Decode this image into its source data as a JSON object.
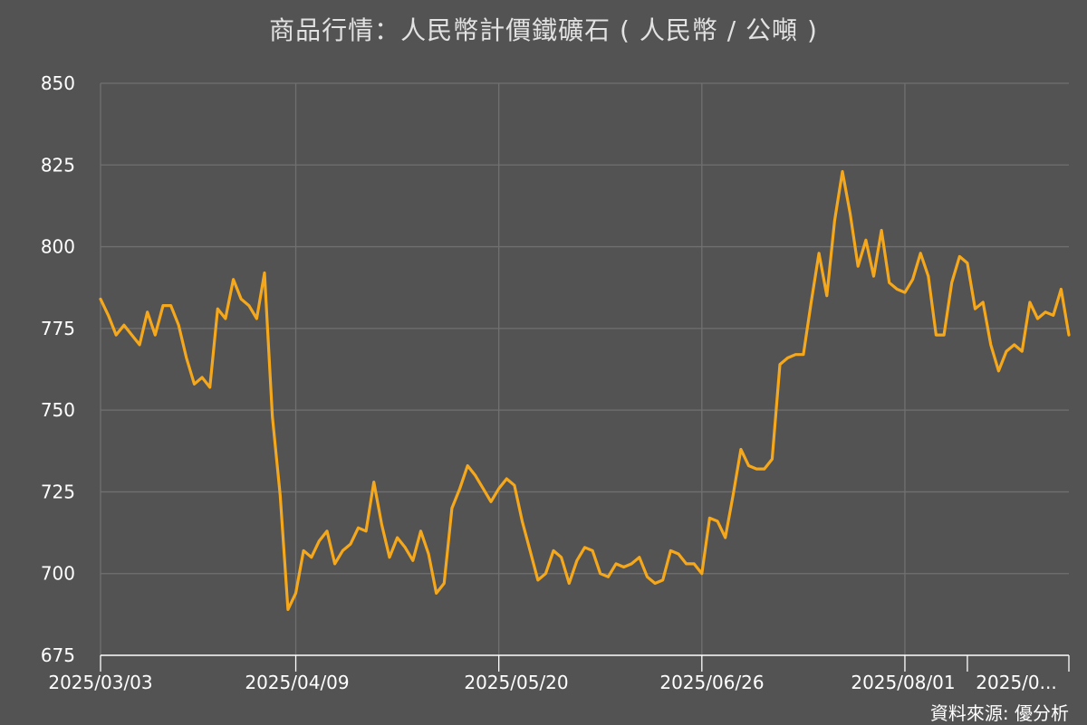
{
  "chart_data": {
    "type": "line",
    "title": "商品行情：人民幣計價鐵礦石 ( 人民幣 / 公噸 )",
    "source": "資料來源: 優分析",
    "xlabel": "",
    "ylabel": "",
    "ylim": [
      675,
      850
    ],
    "yticks": [
      675,
      700,
      725,
      750,
      775,
      800,
      825,
      850
    ],
    "xlim": [
      "2025-03-03",
      "2025-08-25"
    ],
    "xticks": [
      {
        "date": "2025-03-03",
        "label": "2025/03/03"
      },
      {
        "date": "2025-04-09",
        "label": "2025/04/09"
      },
      {
        "date": "2025-05-20",
        "label": "2025/05/20"
      },
      {
        "date": "2025-06-26",
        "label": "2025/06/26"
      },
      {
        "date": "2025-08-01",
        "label": "2025/08/01"
      },
      {
        "date": "2025-08-13",
        "label": "2025/0..."
      }
    ],
    "grid": true,
    "line_color": "#f5a81c",
    "series": [
      {
        "points": [
          [
            "2025-03-03",
            784
          ],
          [
            "2025-03-04",
            779
          ],
          [
            "2025-03-05",
            773
          ],
          [
            "2025-03-06",
            776
          ],
          [
            "2025-03-07",
            773
          ],
          [
            "2025-03-10",
            770
          ],
          [
            "2025-03-11",
            780
          ],
          [
            "2025-03-12",
            773
          ],
          [
            "2025-03-13",
            782
          ],
          [
            "2025-03-14",
            782
          ],
          [
            "2025-03-17",
            776
          ],
          [
            "2025-03-18",
            766
          ],
          [
            "2025-03-19",
            758
          ],
          [
            "2025-03-20",
            760
          ],
          [
            "2025-03-21",
            757
          ],
          [
            "2025-03-24",
            781
          ],
          [
            "2025-03-25",
            778
          ],
          [
            "2025-03-26",
            790
          ],
          [
            "2025-03-27",
            784
          ],
          [
            "2025-03-28",
            782
          ],
          [
            "2025-03-31",
            778
          ],
          [
            "2025-04-01",
            792
          ],
          [
            "2025-04-02",
            748
          ],
          [
            "2025-04-07",
            724
          ],
          [
            "2025-04-08",
            689
          ],
          [
            "2025-04-09",
            694
          ],
          [
            "2025-04-10",
            707
          ],
          [
            "2025-04-11",
            705
          ],
          [
            "2025-04-14",
            710
          ],
          [
            "2025-04-15",
            713
          ],
          [
            "2025-04-16",
            703
          ],
          [
            "2025-04-17",
            707
          ],
          [
            "2025-04-18",
            709
          ],
          [
            "2025-04-21",
            714
          ],
          [
            "2025-04-22",
            713
          ],
          [
            "2025-04-23",
            728
          ],
          [
            "2025-04-24",
            715
          ],
          [
            "2025-04-25",
            705
          ],
          [
            "2025-04-28",
            711
          ],
          [
            "2025-04-29",
            708
          ],
          [
            "2025-04-30",
            704
          ],
          [
            "2025-05-06",
            713
          ],
          [
            "2025-05-07",
            706
          ],
          [
            "2025-05-08",
            694
          ],
          [
            "2025-05-09",
            697
          ],
          [
            "2025-05-12",
            720
          ],
          [
            "2025-05-13",
            726
          ],
          [
            "2025-05-14",
            733
          ],
          [
            "2025-05-15",
            730
          ],
          [
            "2025-05-16",
            726
          ],
          [
            "2025-05-19",
            722
          ],
          [
            "2025-05-20",
            726
          ],
          [
            "2025-05-21",
            729
          ],
          [
            "2025-05-22",
            727
          ],
          [
            "2025-05-23",
            716
          ],
          [
            "2025-05-26",
            707
          ],
          [
            "2025-05-27",
            698
          ],
          [
            "2025-05-28",
            700
          ],
          [
            "2025-05-29",
            707
          ],
          [
            "2025-05-30",
            705
          ],
          [
            "2025-06-03",
            697
          ],
          [
            "2025-06-04",
            704
          ],
          [
            "2025-06-05",
            708
          ],
          [
            "2025-06-06",
            707
          ],
          [
            "2025-06-09",
            700
          ],
          [
            "2025-06-10",
            699
          ],
          [
            "2025-06-11",
            703
          ],
          [
            "2025-06-12",
            702
          ],
          [
            "2025-06-13",
            703
          ],
          [
            "2025-06-16",
            705
          ],
          [
            "2025-06-17",
            699
          ],
          [
            "2025-06-18",
            697
          ],
          [
            "2025-06-19",
            698
          ],
          [
            "2025-06-20",
            707
          ],
          [
            "2025-06-23",
            706
          ],
          [
            "2025-06-24",
            703
          ],
          [
            "2025-06-25",
            703
          ],
          [
            "2025-06-26",
            700
          ],
          [
            "2025-06-27",
            717
          ],
          [
            "2025-06-30",
            716
          ],
          [
            "2025-07-01",
            711
          ],
          [
            "2025-07-02",
            724
          ],
          [
            "2025-07-03",
            738
          ],
          [
            "2025-07-04",
            733
          ],
          [
            "2025-07-07",
            732
          ],
          [
            "2025-07-08",
            732
          ],
          [
            "2025-07-09",
            735
          ],
          [
            "2025-07-10",
            764
          ],
          [
            "2025-07-11",
            766
          ],
          [
            "2025-07-14",
            767
          ],
          [
            "2025-07-15",
            767
          ],
          [
            "2025-07-16",
            783
          ],
          [
            "2025-07-17",
            798
          ],
          [
            "2025-07-18",
            785
          ],
          [
            "2025-07-21",
            808
          ],
          [
            "2025-07-22",
            823
          ],
          [
            "2025-07-23",
            810
          ],
          [
            "2025-07-24",
            794
          ],
          [
            "2025-07-25",
            802
          ],
          [
            "2025-07-28",
            791
          ],
          [
            "2025-07-29",
            805
          ],
          [
            "2025-07-30",
            789
          ],
          [
            "2025-07-31",
            787
          ],
          [
            "2025-08-01",
            786
          ],
          [
            "2025-08-04",
            790
          ],
          [
            "2025-08-05",
            798
          ],
          [
            "2025-08-06",
            791
          ],
          [
            "2025-08-07",
            773
          ],
          [
            "2025-08-08",
            773
          ],
          [
            "2025-08-11",
            789
          ],
          [
            "2025-08-12",
            797
          ],
          [
            "2025-08-13",
            795
          ],
          [
            "2025-08-14",
            781
          ],
          [
            "2025-08-15",
            783
          ],
          [
            "2025-08-18",
            770
          ],
          [
            "2025-08-19",
            762
          ],
          [
            "2025-08-20",
            768
          ],
          [
            "2025-08-21",
            770
          ],
          [
            "2025-08-22",
            768
          ],
          [
            "2025-08-25",
            783
          ],
          [
            "2025-08-26",
            778
          ],
          [
            "2025-08-27",
            780
          ],
          [
            "2025-08-28",
            779
          ],
          [
            "2025-08-29",
            787
          ],
          [
            "2025-09-01",
            773
          ]
        ]
      }
    ]
  }
}
